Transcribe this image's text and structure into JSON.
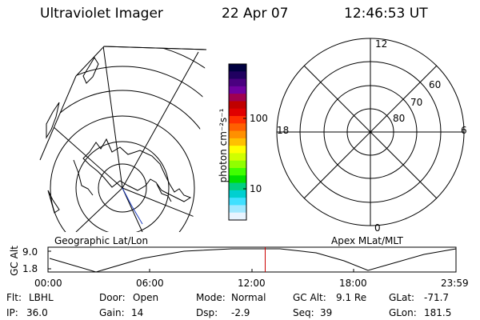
{
  "header": {
    "instrument": "Ultraviolet Imager",
    "date": "22 Apr 07",
    "time": "12:46:53 UT"
  },
  "colorbar": {
    "unit": "photon cm⁻²s⁻¹",
    "tick_labels": [
      "100",
      "10"
    ],
    "colors": [
      "#000040",
      "#200060",
      "#4a0080",
      "#7000a0",
      "#a00050",
      "#c00000",
      "#e00000",
      "#ff3000",
      "#ff6000",
      "#ff9000",
      "#ffc000",
      "#ffff00",
      "#d0ff00",
      "#90ff00",
      "#40ff00",
      "#00e000",
      "#00d080",
      "#00d0d0",
      "#40e0ff",
      "#a0e8ff",
      "#e8f4ff"
    ]
  },
  "left_panel": {
    "label": "Geographic Lat/Lon"
  },
  "right_panel": {
    "label": "Apex MLat/MLT",
    "mlt_labels": {
      "top": "12",
      "left": "18",
      "right": "6",
      "bottom": "0"
    },
    "mlat_labels": [
      "60",
      "70",
      "80"
    ]
  },
  "timeline": {
    "ylabel": "GC Alt",
    "y_ticks": [
      "9.0",
      "1.8"
    ],
    "x_ticks": [
      "00:00",
      "06:00",
      "12:00",
      "18:00",
      "23:59"
    ],
    "current_time_marker": "12:46",
    "marker_color": "#cc0000"
  },
  "status": {
    "row1": [
      {
        "label": "Flt:",
        "value": "LBHL"
      },
      {
        "label": "Door:",
        "value": "Open"
      },
      {
        "label": "Mode:",
        "value": "Normal"
      },
      {
        "label": "GC Alt:",
        "value": "9.1 Re"
      },
      {
        "label": "GLat:",
        "value": "-71.7"
      }
    ],
    "row2": [
      {
        "label": "IP:",
        "value": "36.0"
      },
      {
        "label": "Gain:",
        "value": "14"
      },
      {
        "label": "Dsp:",
        "value": "-2.9"
      },
      {
        "label": "Seq:",
        "value": "39"
      },
      {
        "label": "GLon:",
        "value": "181.5"
      }
    ]
  }
}
